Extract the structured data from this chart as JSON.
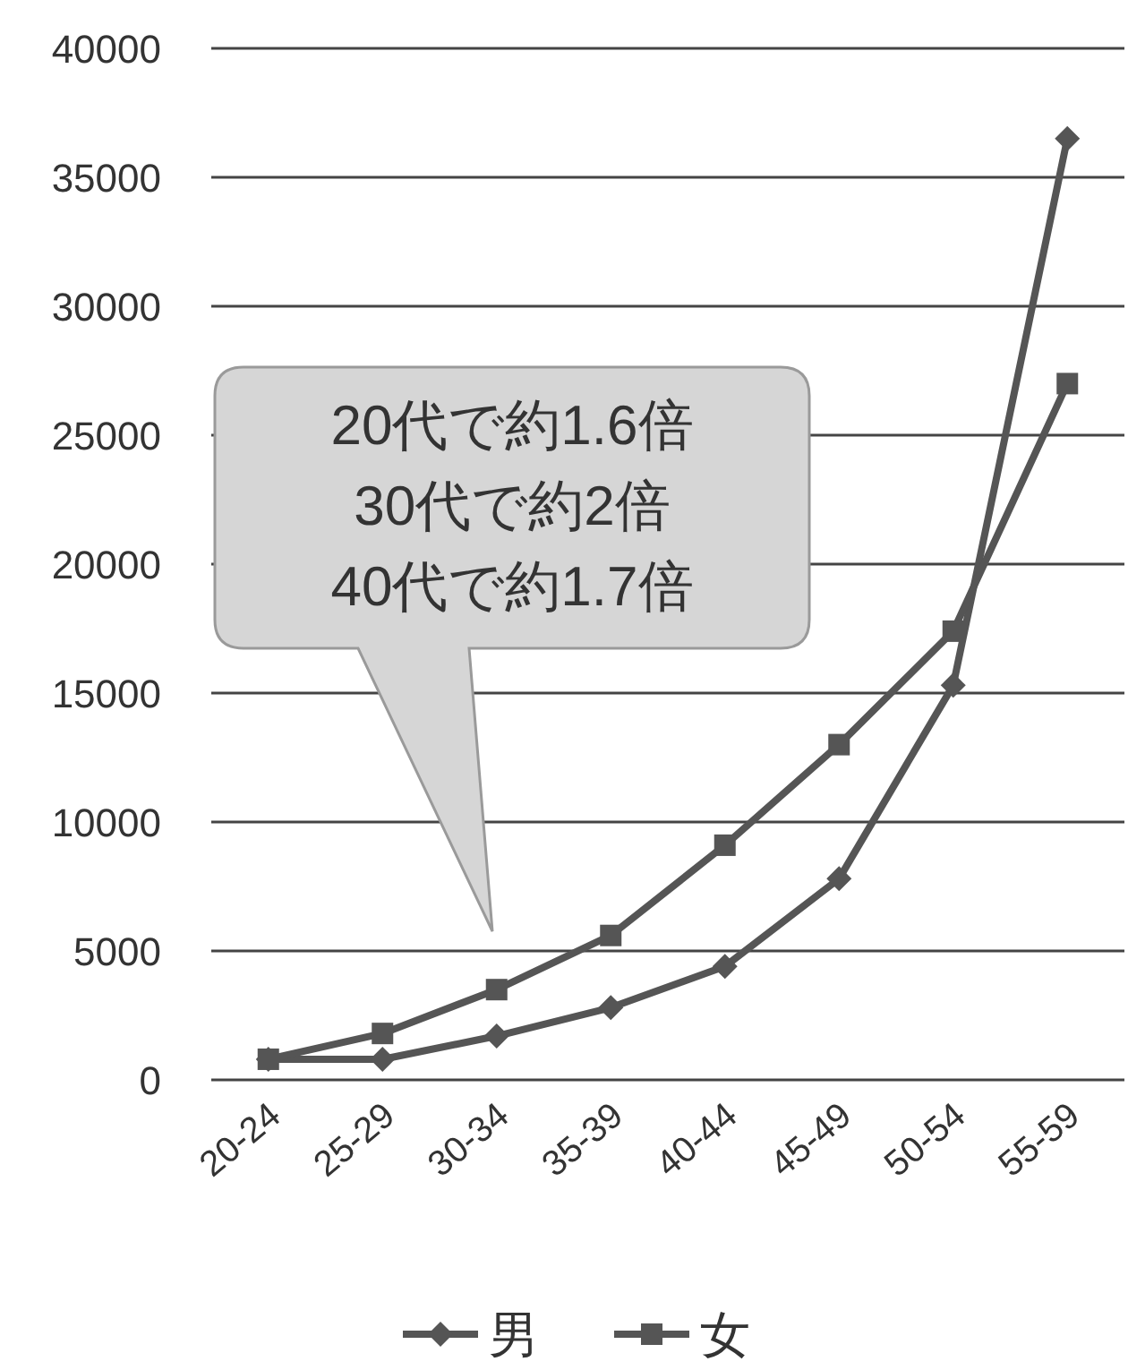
{
  "chart_data": {
    "type": "line",
    "categories": [
      "20-24",
      "25-29",
      "30-34",
      "35-39",
      "40-44",
      "45-49",
      "50-54",
      "55-59"
    ],
    "series": [
      {
        "name": "男",
        "color": "#555555",
        "marker": "diamond",
        "values": [
          800,
          800,
          1700,
          2800,
          4400,
          7800,
          15300,
          36500
        ]
      },
      {
        "name": "女",
        "color": "#555555",
        "marker": "square",
        "values": [
          800,
          1800,
          3500,
          5600,
          9100,
          13000,
          17400,
          27000
        ]
      }
    ],
    "ylim": [
      0,
      40000
    ],
    "yticks": [
      0,
      5000,
      10000,
      15000,
      20000,
      25000,
      30000,
      35000,
      40000
    ],
    "grid": "y",
    "legend": "bottom",
    "annotations": [
      "20代で約1.6倍",
      "30代で約2倍",
      "40代で約1.7倍"
    ]
  }
}
